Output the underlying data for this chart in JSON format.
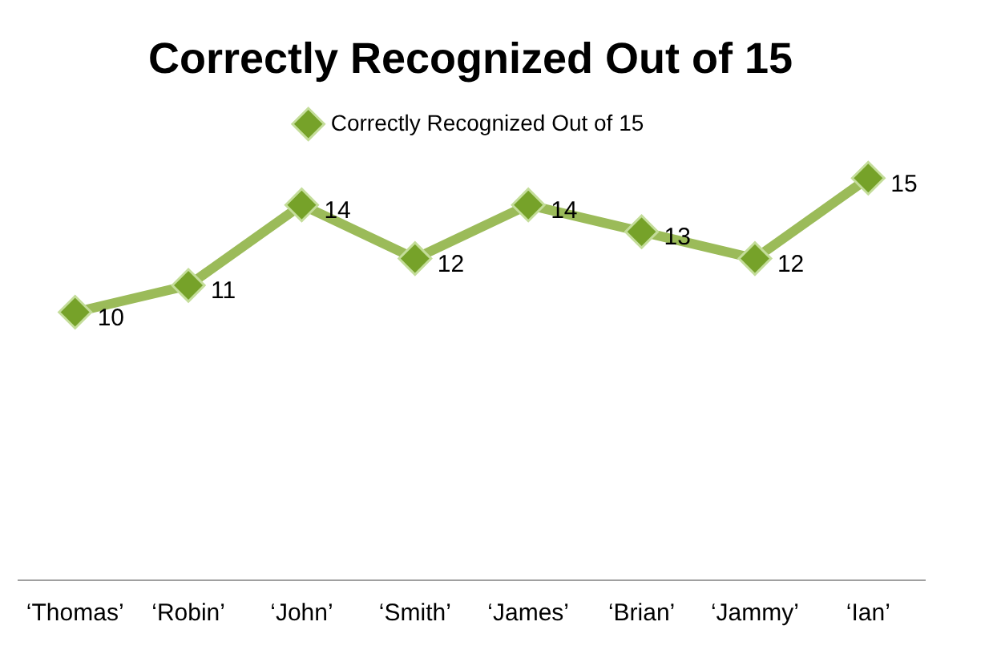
{
  "chart_data": {
    "type": "line",
    "title": "Correctly Recognized Out of 15",
    "categories": [
      "‘Thomas’",
      "‘Robin’",
      "‘John’",
      "‘Smith’",
      "‘James’",
      "‘Brian’",
      "‘Jammy’",
      "‘Ian’"
    ],
    "series": [
      {
        "name": "Correctly Recognized Out of 15",
        "color": "#9bbb59",
        "values": [
          10,
          11,
          14,
          12,
          14,
          13,
          12,
          15
        ]
      }
    ],
    "data_labels": true,
    "legend": "top",
    "marker": "diamond",
    "grid": false,
    "tick_labels": "x"
  }
}
